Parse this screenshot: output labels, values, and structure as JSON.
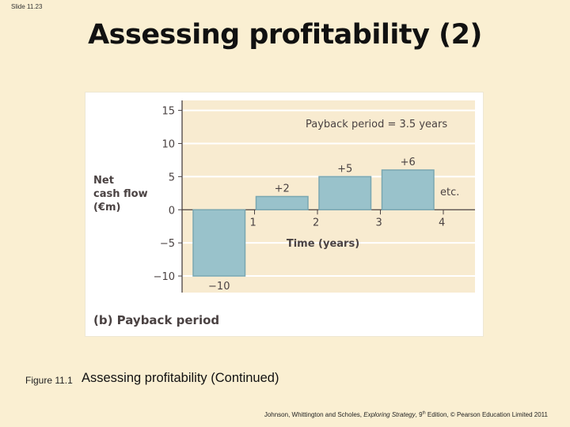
{
  "slide": {
    "number_label": "Slide 11.23",
    "title": "Assessing profitability (2)"
  },
  "figure": {
    "caption_label": "Figure 11.1",
    "caption_text": "Assessing profitability (Continued)"
  },
  "footer": {
    "prefix": "Johnson, Whittington and Scholes, ",
    "book": "Exploring Strategy",
    "edition_prefix": ", 9",
    "edition_sup": "th",
    "suffix": " Edition, © Pearson Education Limited 2011"
  },
  "colors": {
    "page_background": "#faefd2",
    "plot_background": "#f8ebd0",
    "bar_fill": "#99c2cb",
    "bar_stroke": "#7aa7b1",
    "text": "#4a4242"
  },
  "chart_data": {
    "type": "bar",
    "subtitle": "(b) Payback period",
    "ylabel_lines": [
      "Net",
      "cash flow",
      "(€m)"
    ],
    "xlabel": "Time (years)",
    "annotation": "Payback period = 3.5 years",
    "continuation_label": "etc.",
    "ylim": [
      -12.5,
      16.5
    ],
    "yticks": [
      15,
      10,
      5,
      0,
      -5,
      -10
    ],
    "ytick_labels": [
      "15",
      "10",
      "5",
      "0",
      "−5",
      "−10"
    ],
    "xticks": [
      "1",
      "2",
      "3",
      "4"
    ],
    "grid": true,
    "bars": [
      {
        "period": 1,
        "value": -10,
        "label": "−10"
      },
      {
        "period": 2,
        "value": 2,
        "label": "+2"
      },
      {
        "period": 3,
        "value": 5,
        "label": "+5"
      },
      {
        "period": 4,
        "value": 6,
        "label": "+6"
      }
    ]
  }
}
